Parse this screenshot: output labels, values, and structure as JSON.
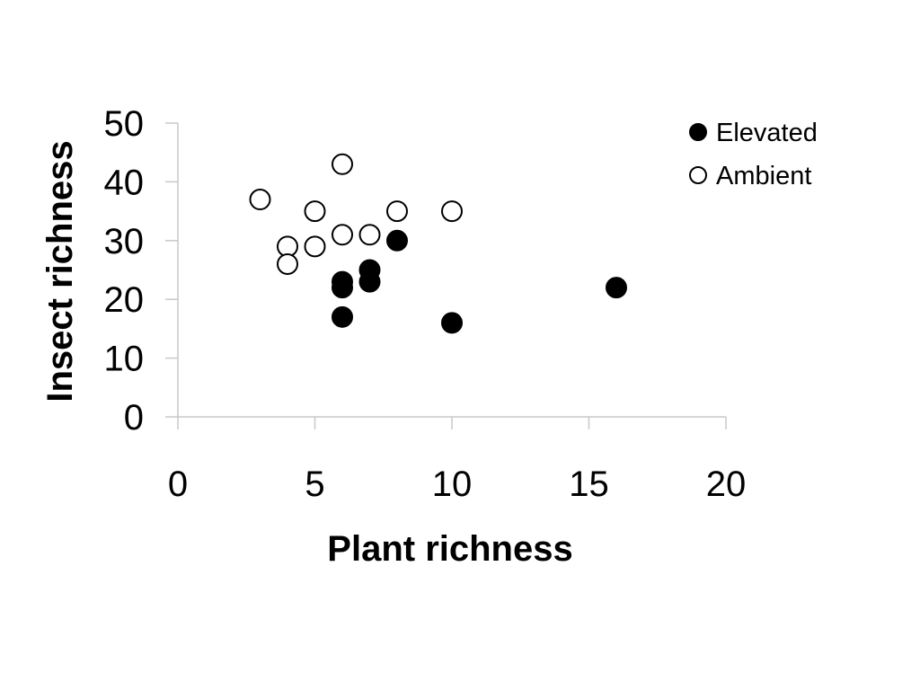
{
  "chart_data": {
    "type": "scatter",
    "xlabel": "Plant richness",
    "ylabel": "Insect richness",
    "xlim": [
      0,
      20
    ],
    "ylim": [
      0,
      50
    ],
    "xticks": [
      "0",
      "5",
      "10",
      "15",
      "20"
    ],
    "yticks": [
      "0",
      "10",
      "20",
      "30",
      "40",
      "50"
    ],
    "grid": false,
    "legend_position": "top-right",
    "series": [
      {
        "name": "Elevated",
        "marker": "filled-circle",
        "color": "#000000",
        "points": [
          {
            "x": 6,
            "y": 23
          },
          {
            "x": 6,
            "y": 22
          },
          {
            "x": 6,
            "y": 17
          },
          {
            "x": 7,
            "y": 25
          },
          {
            "x": 7,
            "y": 23
          },
          {
            "x": 8,
            "y": 30
          },
          {
            "x": 10,
            "y": 16
          },
          {
            "x": 16,
            "y": 22
          }
        ]
      },
      {
        "name": "Ambient",
        "marker": "open-circle",
        "color": "#000000",
        "points": [
          {
            "x": 3,
            "y": 37
          },
          {
            "x": 4,
            "y": 29
          },
          {
            "x": 4,
            "y": 26
          },
          {
            "x": 5,
            "y": 35
          },
          {
            "x": 5,
            "y": 29
          },
          {
            "x": 6,
            "y": 43
          },
          {
            "x": 6,
            "y": 31
          },
          {
            "x": 7,
            "y": 31
          },
          {
            "x": 8,
            "y": 35
          },
          {
            "x": 10,
            "y": 35
          }
        ]
      }
    ]
  }
}
